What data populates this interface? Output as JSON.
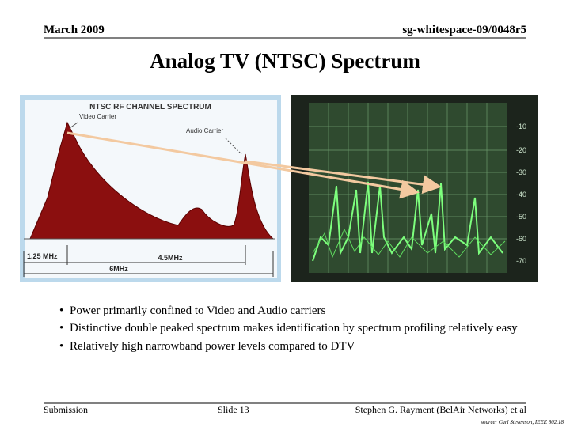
{
  "header": {
    "date": "March 2009",
    "doc_id": "sg-whitespace-09/0048r5"
  },
  "title": "Analog TV (NTSC) Spectrum",
  "left_figure": {
    "title": "NTSC RF CHANNEL SPECTRUM",
    "video_carrier": "Video Carrier",
    "audio_carrier": "Audio Carrier",
    "dim_1": "1.25 MHz",
    "dim_2": "4.5MHz",
    "dim_3": "6MHz"
  },
  "right_figure": {
    "scale_labels": [
      "-10",
      "-20",
      "-30",
      "-40",
      "-50",
      "-60",
      "-70"
    ]
  },
  "bullets": [
    "Power primarily confined to Video and Audio carriers",
    "Distinctive double peaked spectrum makes identification by spectrum profiling relatively easy",
    "Relatively high narrowband power levels compared to DTV"
  ],
  "footer": {
    "left": "Submission",
    "center": "Slide 13",
    "right": "Stephen G. Rayment (BelAir Networks) et al",
    "source": "source: Carl Stevenson, IEEE 802.18"
  }
}
